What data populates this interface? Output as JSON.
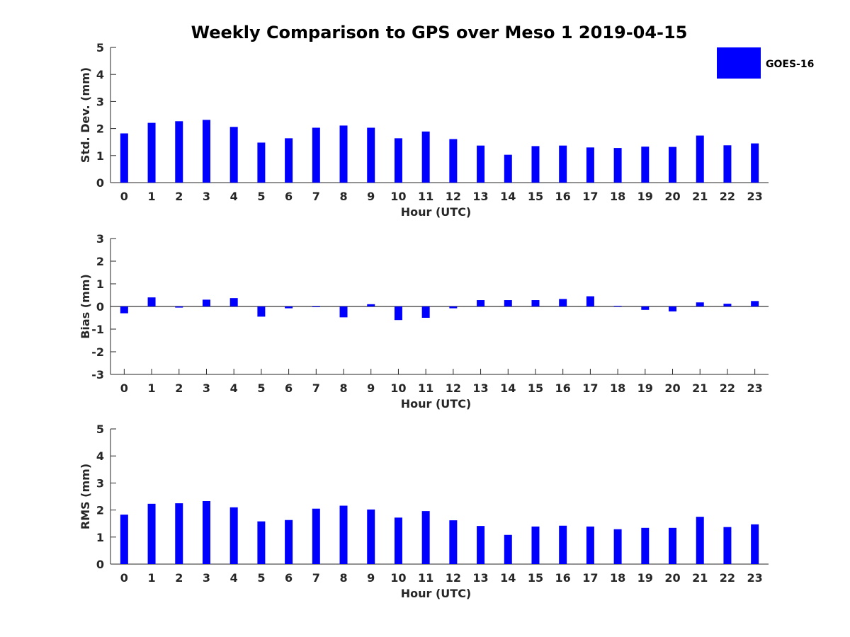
{
  "chart_data": {
    "title": "Weekly Comparison to GPS over Meso 1 2019-04-15",
    "legend": {
      "label": "GOES-16",
      "placement": "top-right"
    },
    "bar_color": "#0000ff",
    "axis_color": "#262626",
    "categories": [
      "0",
      "1",
      "2",
      "3",
      "4",
      "5",
      "6",
      "7",
      "8",
      "9",
      "10",
      "11",
      "12",
      "13",
      "14",
      "15",
      "16",
      "17",
      "18",
      "19",
      "20",
      "21",
      "22",
      "23"
    ],
    "panels": [
      {
        "type": "bar",
        "xlabel": "Hour (UTC)",
        "ylabel": "Std. Dev. (mm)",
        "ylim": [
          0,
          5
        ],
        "yticks": [
          0,
          1,
          2,
          3,
          4,
          5
        ],
        "series": [
          {
            "name": "GOES-16",
            "values": [
              1.82,
              2.21,
              2.27,
              2.32,
              2.06,
              1.48,
              1.64,
              2.03,
              2.11,
              2.03,
              1.64,
              1.89,
              1.61,
              1.37,
              1.03,
              1.35,
              1.37,
              1.3,
              1.28,
              1.33,
              1.32,
              1.74,
              1.38,
              1.45
            ]
          }
        ]
      },
      {
        "type": "bar",
        "xlabel": "Hour (UTC)",
        "ylabel": "Bias (mm)",
        "ylim": [
          -3,
          3
        ],
        "yticks": [
          -3,
          -2,
          -1,
          0,
          1,
          2,
          3
        ],
        "series": [
          {
            "name": "GOES-16",
            "values": [
              -0.3,
              0.4,
              -0.05,
              0.3,
              0.37,
              -0.45,
              -0.08,
              -0.02,
              -0.48,
              0.1,
              -0.6,
              -0.5,
              -0.08,
              0.28,
              0.28,
              0.28,
              0.33,
              0.45,
              0.03,
              -0.15,
              -0.22,
              0.18,
              0.12,
              0.24
            ]
          }
        ]
      },
      {
        "type": "bar",
        "xlabel": "Hour (UTC)",
        "ylabel": "RMS (mm)",
        "ylim": [
          0,
          5
        ],
        "yticks": [
          0,
          1,
          2,
          3,
          4,
          5
        ],
        "series": [
          {
            "name": "GOES-16",
            "values": [
              1.83,
              2.23,
              2.25,
              2.33,
              2.1,
              1.58,
              1.63,
              2.05,
              2.16,
              2.02,
              1.72,
              1.96,
              1.62,
              1.41,
              1.08,
              1.39,
              1.42,
              1.39,
              1.29,
              1.34,
              1.34,
              1.75,
              1.37,
              1.47
            ]
          }
        ]
      }
    ]
  }
}
